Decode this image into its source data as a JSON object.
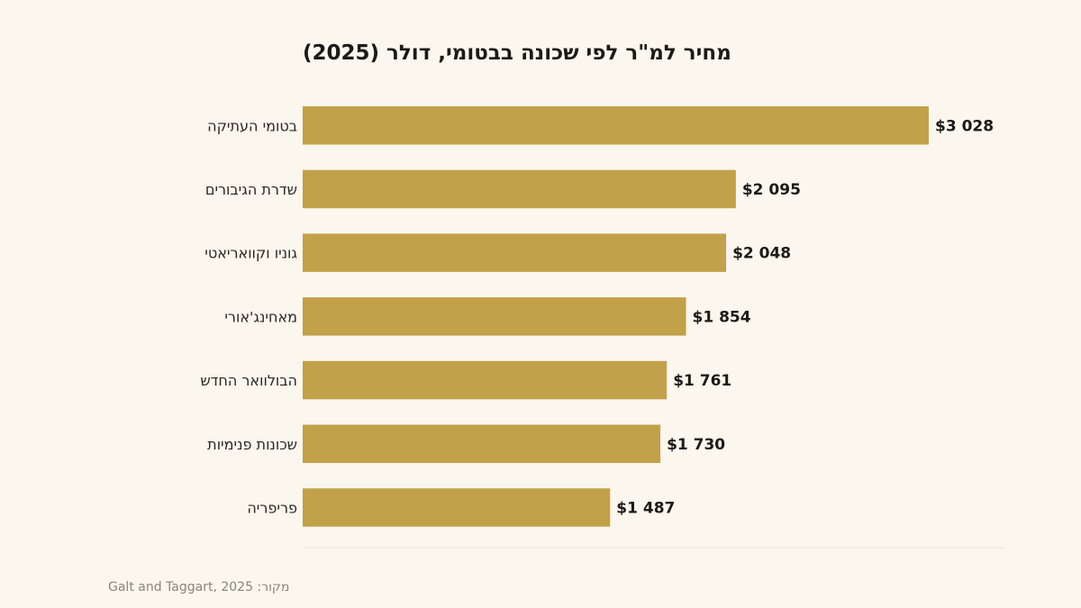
{
  "chart_data": {
    "type": "bar",
    "orientation": "horizontal",
    "title": "מחיר למ\"ר לפי שכונה בבטומי, דולר (2025)",
    "categories": [
      "בטומי העתיקה",
      "שדרת הגיבורים",
      "גוניו וקוואריאטי",
      "מאחינג'אורי",
      "הבולוואר החדש",
      "שכונות פנימיות",
      "פריפריה"
    ],
    "values": [
      3028,
      2095,
      2048,
      1854,
      1761,
      1730,
      1487
    ],
    "value_labels": [
      "$3 028",
      "$2 095",
      "$2 048",
      "$1 854",
      "$1 761",
      "$1 730",
      "$1 487"
    ],
    "xlim": [
      0,
      3400
    ],
    "grid": false,
    "legend": "none",
    "bar_color": "#c2a14b"
  },
  "source": "מקור: Galt and Taggart, 2025"
}
